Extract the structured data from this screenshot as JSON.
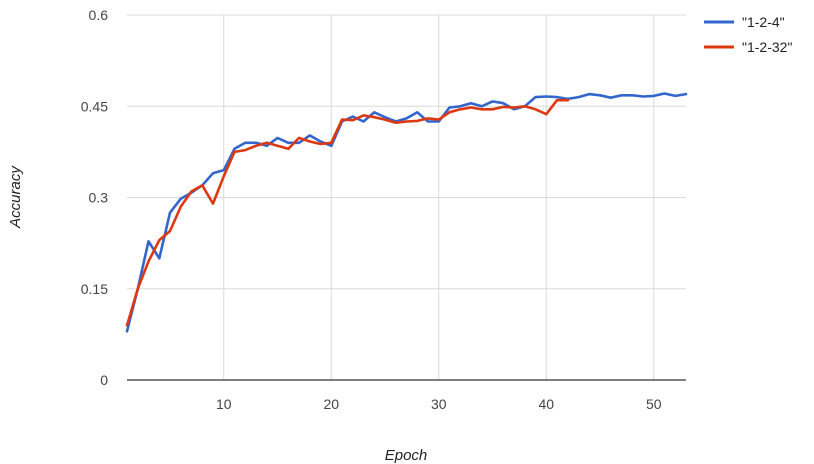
{
  "chart_data": {
    "type": "line",
    "xlabel": "Epoch",
    "ylabel": "Accuracy",
    "xlim": [
      1,
      53
    ],
    "ylim": [
      0,
      0.6
    ],
    "x_ticks": [
      10,
      20,
      30,
      40,
      50
    ],
    "y_ticks": [
      0,
      0.15,
      0.3,
      0.45,
      0.6
    ],
    "y_tick_labels": [
      "0",
      "0.15",
      "0.3",
      "0.45",
      "0.6"
    ],
    "x_tick_labels": [
      "10",
      "20",
      "30",
      "40",
      "50"
    ],
    "grid": true,
    "legend_position": "top-right",
    "series": [
      {
        "name": "\"1-2-4\"",
        "color": "#3366cc",
        "x": [
          1,
          2,
          3,
          4,
          5,
          6,
          7,
          8,
          9,
          10,
          11,
          12,
          13,
          14,
          15,
          16,
          17,
          18,
          19,
          20,
          21,
          22,
          23,
          24,
          25,
          26,
          27,
          28,
          29,
          30,
          31,
          32,
          33,
          34,
          35,
          36,
          37,
          38,
          39,
          40,
          41,
          42,
          43,
          44,
          45,
          46,
          47,
          48,
          49,
          50,
          51,
          52,
          53
        ],
        "y": [
          0.08,
          0.15,
          0.228,
          0.2,
          0.275,
          0.298,
          0.308,
          0.32,
          0.34,
          0.345,
          0.38,
          0.39,
          0.39,
          0.385,
          0.398,
          0.39,
          0.39,
          0.402,
          0.392,
          0.385,
          0.425,
          0.433,
          0.425,
          0.44,
          0.432,
          0.425,
          0.43,
          0.44,
          0.425,
          0.425,
          0.448,
          0.45,
          0.455,
          0.45,
          0.458,
          0.455,
          0.445,
          0.45,
          0.465,
          0.466,
          0.465,
          0.462,
          0.465,
          0.47,
          0.468,
          0.464,
          0.468,
          0.468,
          0.466,
          0.467,
          0.471,
          0.467,
          0.47
        ]
      },
      {
        "name": "\"1-2-32\"",
        "color": "#dc3912",
        "x": [
          1,
          2,
          3,
          4,
          5,
          6,
          7,
          8,
          9,
          10,
          11,
          12,
          13,
          14,
          15,
          16,
          17,
          18,
          19,
          20,
          21,
          22,
          23,
          24,
          25,
          26,
          27,
          28,
          29,
          30,
          31,
          32,
          33,
          34,
          35,
          36,
          37,
          38,
          39,
          40,
          41,
          42
        ],
        "y": [
          0.09,
          0.15,
          0.195,
          0.23,
          0.245,
          0.285,
          0.31,
          0.32,
          0.29,
          0.335,
          0.375,
          0.378,
          0.385,
          0.39,
          0.385,
          0.38,
          0.398,
          0.392,
          0.388,
          0.39,
          0.428,
          0.427,
          0.435,
          0.432,
          0.428,
          0.423,
          0.425,
          0.426,
          0.43,
          0.428,
          0.44,
          0.445,
          0.448,
          0.445,
          0.445,
          0.449,
          0.448,
          0.45,
          0.445,
          0.437,
          0.46,
          0.46
        ]
      }
    ]
  }
}
